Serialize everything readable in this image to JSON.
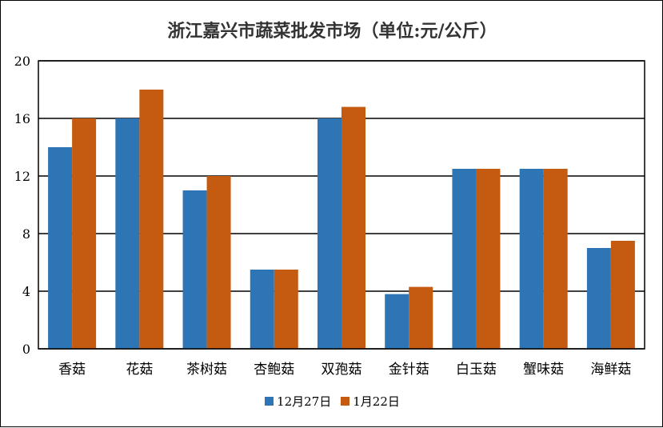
{
  "chart_data": {
    "type": "bar",
    "title": "浙江嘉兴市蔬菜批发市场（单位:元/公斤）",
    "xlabel": "",
    "ylabel": "",
    "categories": [
      "香菇",
      "花菇",
      "茶树菇",
      "杏鲍菇",
      "双孢菇",
      "金针菇",
      "白玉菇",
      "蟹味菇",
      "海鲜菇"
    ],
    "series": [
      {
        "name": "12月27日",
        "color": "#2E75B6",
        "values": [
          14,
          16,
          11,
          5.5,
          16,
          3.8,
          12.5,
          12.5,
          7
        ]
      },
      {
        "name": "1月22日",
        "color": "#C55A11",
        "values": [
          16,
          18,
          12,
          5.5,
          16.8,
          4.3,
          12.5,
          12.5,
          7.5
        ]
      }
    ],
    "ylim": [
      0,
      20
    ],
    "yticks": [
      0,
      4,
      8,
      12,
      16,
      20
    ],
    "grid": true,
    "legend_position": "bottom"
  }
}
